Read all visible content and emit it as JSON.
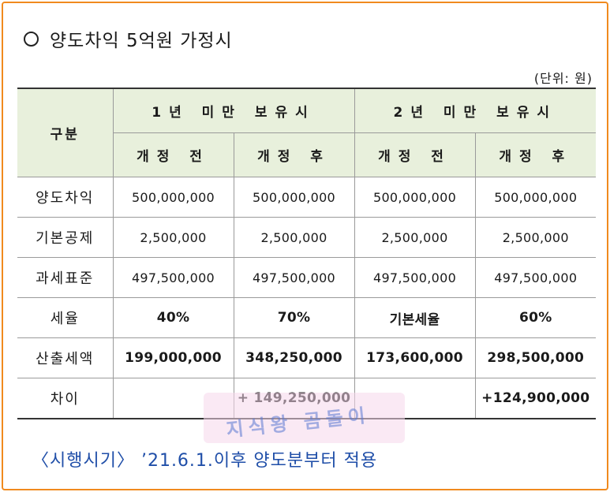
{
  "title": "양도차익 5억원 가정시",
  "unit": "(단위: 원)",
  "table": {
    "row_header": "구분",
    "groups": [
      "1년 미만 보유시",
      "2년 미만 보유시"
    ],
    "sub_headers": [
      "개정 전",
      "개정 후",
      "개정 전",
      "개정 후"
    ],
    "rows": [
      {
        "label": "양도차익",
        "values": [
          "500,000,000",
          "500,000,000",
          "500,000,000",
          "500,000,000"
        ]
      },
      {
        "label": "기본공제",
        "values": [
          "2,500,000",
          "2,500,000",
          "2,500,000",
          "2,500,000"
        ]
      },
      {
        "label": "과세표준",
        "values": [
          "497,500,000",
          "497,500,000",
          "497,500,000",
          "497,500,000"
        ]
      },
      {
        "label": "세율",
        "values": [
          "40%",
          "70%",
          "기본세율",
          "60%"
        ]
      },
      {
        "label": "산출세액",
        "values": [
          "199,000,000",
          "348,250,000",
          "173,600,000",
          "298,500,000"
        ]
      },
      {
        "label": "차이",
        "values": [
          "",
          "+ 149,250,000",
          "",
          "+124,900,000"
        ]
      }
    ]
  },
  "footnote": "〈시행시기〉 ’21.6.1.이후 양도분부터 적용",
  "watermark": "지식왕 곰돌이",
  "colors": {
    "border": "#f08a1e",
    "header_bg": "#e8f0dc",
    "footnote": "#1f4ea8"
  }
}
